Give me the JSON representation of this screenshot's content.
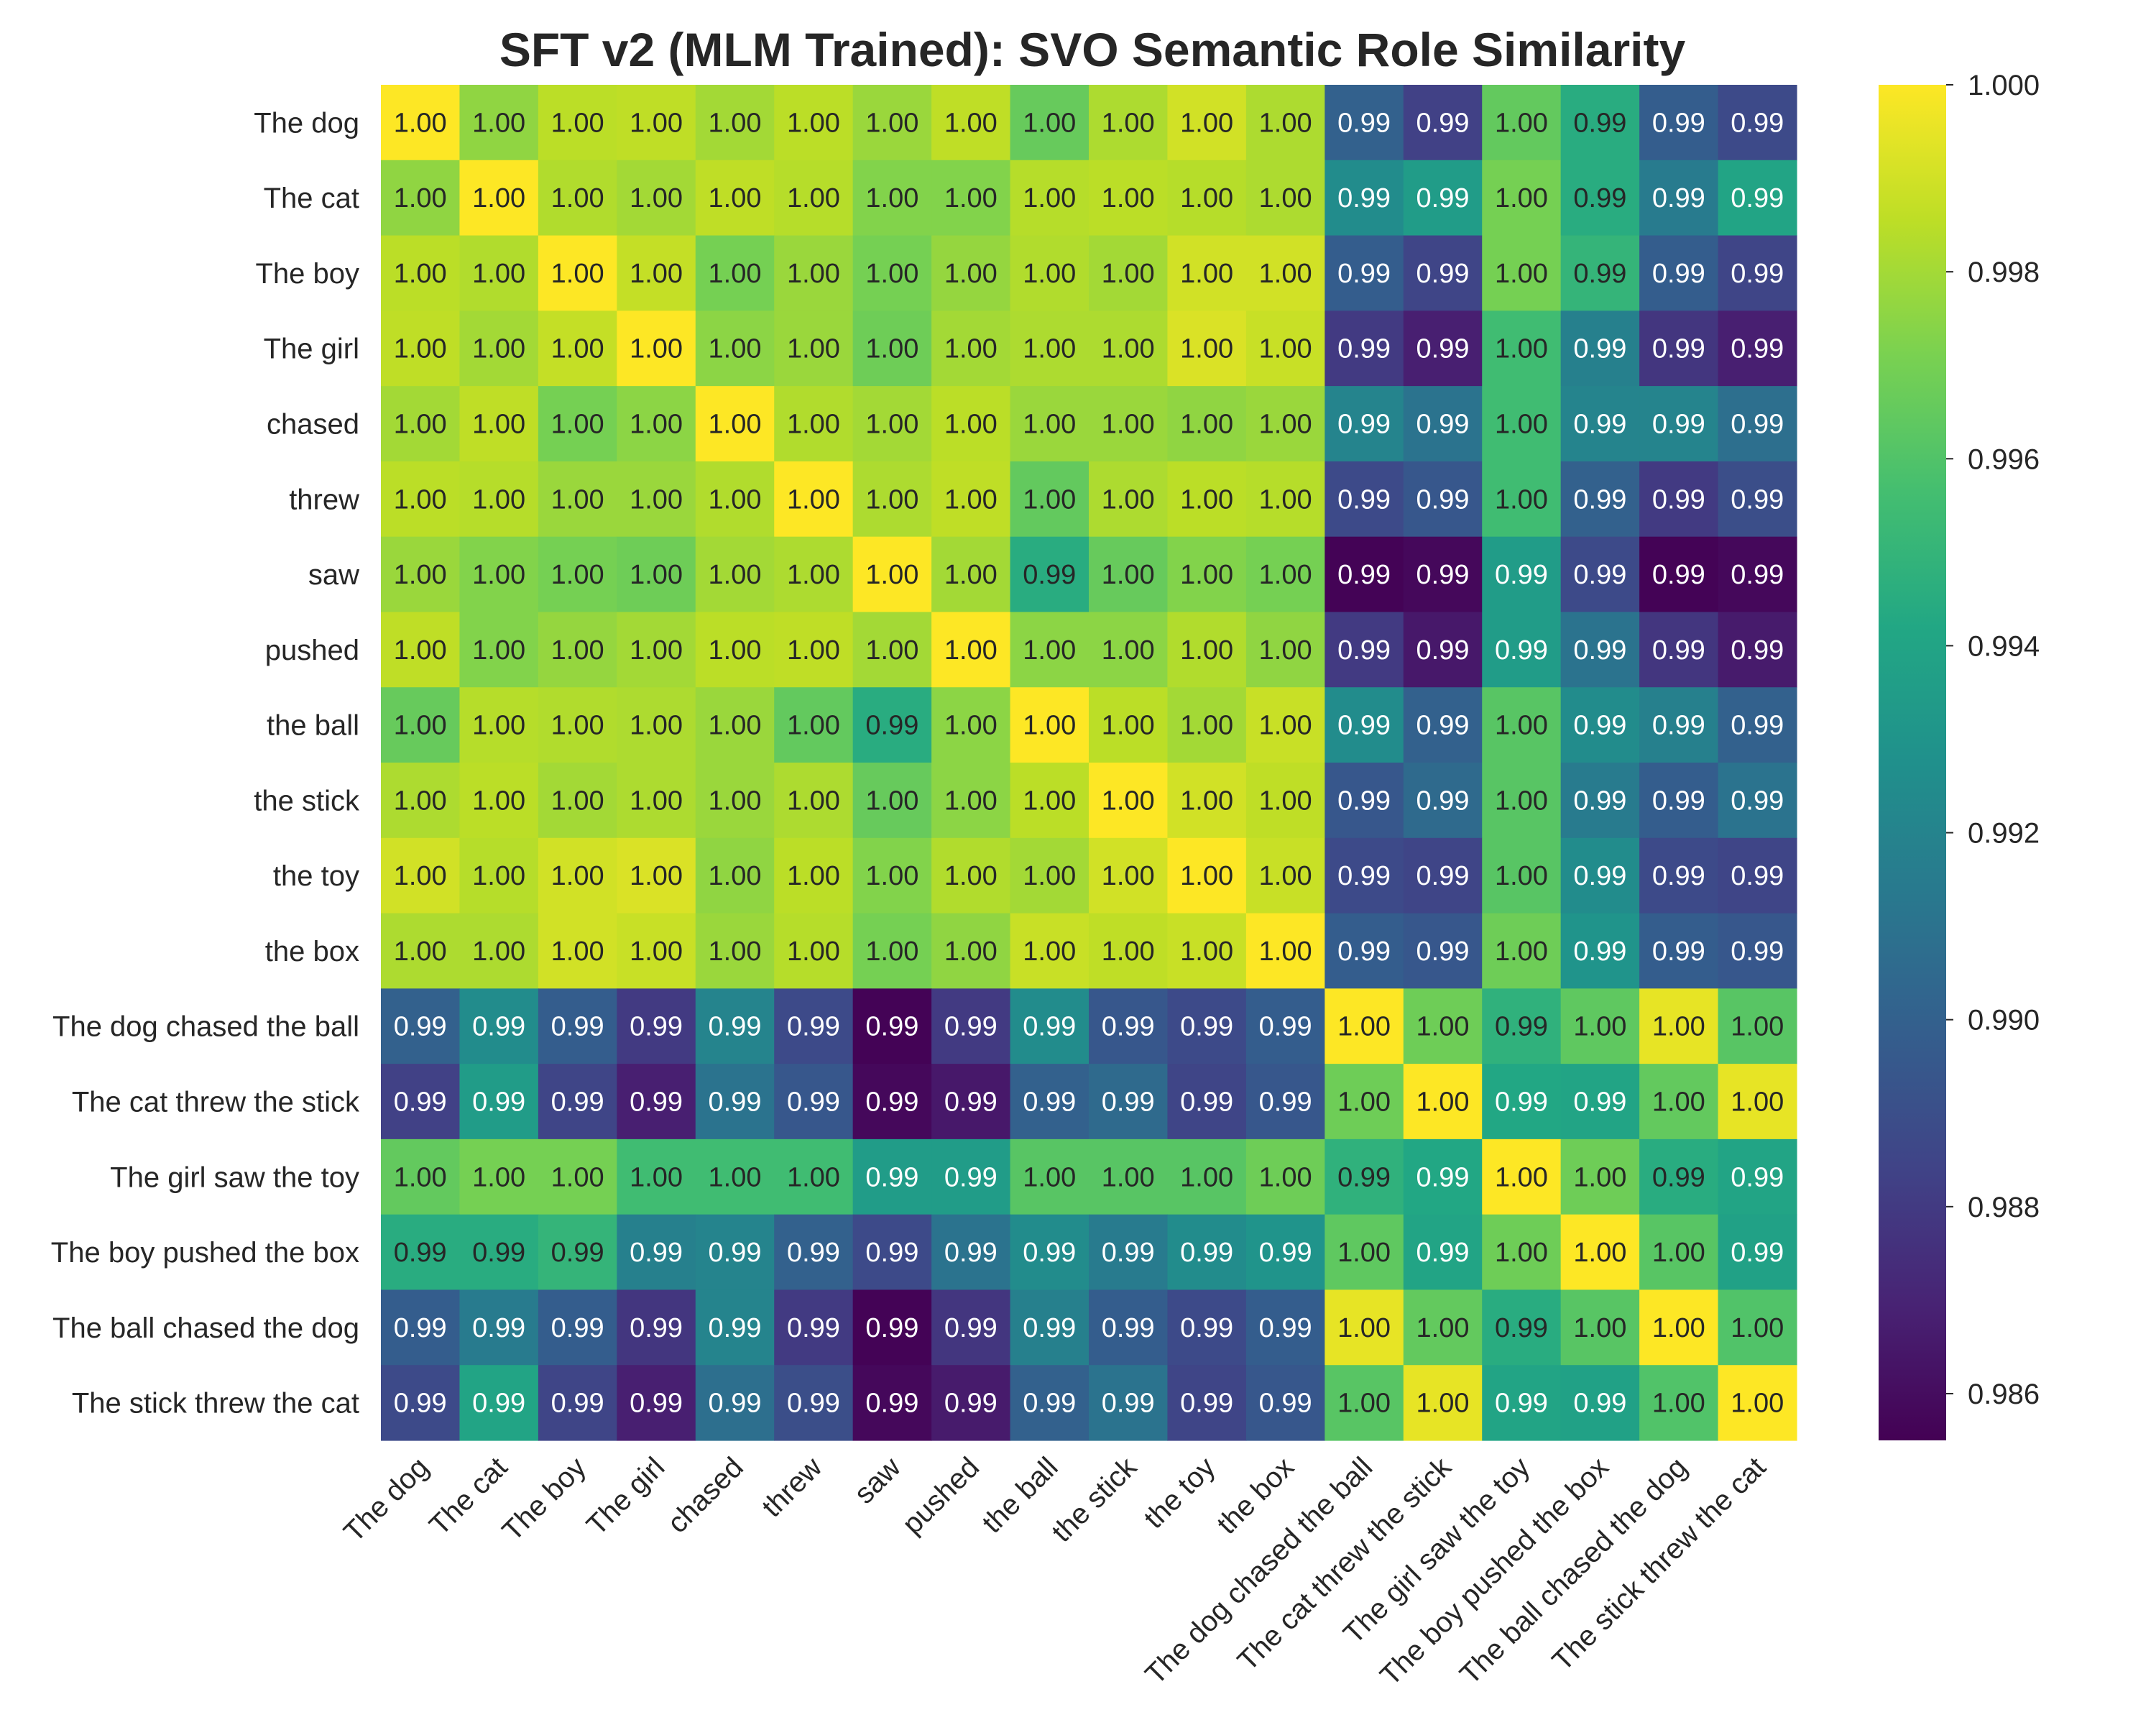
{
  "chart_data": {
    "type": "heatmap",
    "title": "SFT v2 (MLM Trained): SVO Semantic Role Similarity",
    "row_labels": [
      "The dog",
      "The cat",
      "The boy",
      "The girl",
      "chased",
      "threw",
      "saw",
      "pushed",
      "the ball",
      "the stick",
      "the toy",
      "the box",
      "The dog chased the ball",
      "The cat threw the stick",
      "The girl saw the toy",
      "The boy pushed the box",
      "The ball chased the dog",
      "The stick threw the cat"
    ],
    "col_labels": [
      "The dog",
      "The cat",
      "The boy",
      "The girl",
      "chased",
      "threw",
      "saw",
      "pushed",
      "the ball",
      "the stick",
      "the toy",
      "the box",
      "The dog chased the ball",
      "The cat threw the stick",
      "The girl saw the toy",
      "The boy pushed the box",
      "The ball chased the dog",
      "The stick threw the cat"
    ],
    "values": [
      [
        1.0,
        0.9976,
        0.9985,
        0.9986,
        0.998,
        0.9985,
        0.9978,
        0.9986,
        0.9966,
        0.9982,
        0.999,
        0.9982,
        0.99,
        0.9883,
        0.9965,
        0.9945,
        0.9898,
        0.9888
      ],
      [
        0.9976,
        1.0,
        0.9983,
        0.998,
        0.9986,
        0.9984,
        0.9973,
        0.9973,
        0.9984,
        0.9985,
        0.9984,
        0.9982,
        0.9925,
        0.9935,
        0.997,
        0.9945,
        0.9915,
        0.994
      ],
      [
        0.9985,
        0.9983,
        1.0,
        0.9987,
        0.997,
        0.9978,
        0.997,
        0.9977,
        0.9983,
        0.998,
        0.999,
        0.999,
        0.9898,
        0.9885,
        0.997,
        0.995,
        0.9898,
        0.9885
      ],
      [
        0.9986,
        0.998,
        0.9987,
        1.0,
        0.9975,
        0.9978,
        0.9968,
        0.998,
        0.9982,
        0.9982,
        0.9992,
        0.9988,
        0.988,
        0.9868,
        0.9955,
        0.9918,
        0.9878,
        0.9868
      ],
      [
        0.998,
        0.9986,
        0.997,
        0.9975,
        1.0,
        0.9983,
        0.998,
        0.9985,
        0.9978,
        0.9978,
        0.9976,
        0.9978,
        0.992,
        0.991,
        0.9955,
        0.992,
        0.992,
        0.9908
      ],
      [
        0.9985,
        0.9984,
        0.9978,
        0.9978,
        0.9983,
        1.0,
        0.9982,
        0.9986,
        0.9965,
        0.9982,
        0.9985,
        0.9984,
        0.9888,
        0.9895,
        0.9955,
        0.99,
        0.988,
        0.989
      ],
      [
        0.9978,
        0.9973,
        0.997,
        0.9968,
        0.998,
        0.9982,
        1.0,
        0.998,
        0.9945,
        0.9966,
        0.9973,
        0.997,
        0.9856,
        0.9858,
        0.9935,
        0.9888,
        0.9856,
        0.9858
      ],
      [
        0.9986,
        0.9973,
        0.9977,
        0.998,
        0.9985,
        0.9986,
        0.998,
        1.0,
        0.9975,
        0.9975,
        0.9983,
        0.9976,
        0.988,
        0.9865,
        0.9935,
        0.991,
        0.9878,
        0.9866
      ],
      [
        0.9966,
        0.9984,
        0.9983,
        0.9982,
        0.9978,
        0.9965,
        0.9945,
        0.9975,
        1.0,
        0.9985,
        0.998,
        0.9988,
        0.9925,
        0.99,
        0.9962,
        0.9925,
        0.9918,
        0.99
      ],
      [
        0.9982,
        0.9985,
        0.998,
        0.9982,
        0.9978,
        0.9982,
        0.9966,
        0.9975,
        0.9985,
        1.0,
        0.999,
        0.9986,
        0.9895,
        0.9905,
        0.9962,
        0.9915,
        0.9898,
        0.991
      ],
      [
        0.999,
        0.9984,
        0.999,
        0.9992,
        0.9976,
        0.9985,
        0.9973,
        0.9983,
        0.998,
        0.999,
        1.0,
        0.9988,
        0.9888,
        0.9885,
        0.9962,
        0.9925,
        0.9888,
        0.9885
      ],
      [
        0.9982,
        0.9982,
        0.999,
        0.9988,
        0.9978,
        0.9984,
        0.997,
        0.9976,
        0.9988,
        0.9986,
        0.9988,
        1.0,
        0.9898,
        0.9895,
        0.9968,
        0.993,
        0.9898,
        0.9895
      ],
      [
        0.99,
        0.9925,
        0.9898,
        0.988,
        0.992,
        0.9888,
        0.9856,
        0.988,
        0.9925,
        0.9895,
        0.9888,
        0.9898,
        1.0,
        0.9968,
        0.9948,
        0.9964,
        0.9995,
        0.9962
      ],
      [
        0.9883,
        0.9935,
        0.9885,
        0.9868,
        0.991,
        0.9895,
        0.9858,
        0.9865,
        0.99,
        0.9905,
        0.9885,
        0.9895,
        0.9968,
        1.0,
        0.9942,
        0.994,
        0.9965,
        0.9995
      ],
      [
        0.9965,
        0.997,
        0.997,
        0.9955,
        0.9955,
        0.9955,
        0.9935,
        0.9935,
        0.9962,
        0.9962,
        0.9962,
        0.9968,
        0.9948,
        0.9942,
        1.0,
        0.9968,
        0.9945,
        0.994
      ],
      [
        0.9945,
        0.9945,
        0.995,
        0.9918,
        0.992,
        0.99,
        0.9888,
        0.991,
        0.9925,
        0.9915,
        0.9925,
        0.993,
        0.9964,
        0.994,
        0.9968,
        1.0,
        0.9962,
        0.9938
      ],
      [
        0.9898,
        0.9915,
        0.9898,
        0.9878,
        0.992,
        0.988,
        0.9856,
        0.9878,
        0.9918,
        0.9898,
        0.9888,
        0.9898,
        0.9995,
        0.9965,
        0.9945,
        0.9962,
        1.0,
        0.996
      ],
      [
        0.9888,
        0.994,
        0.9885,
        0.9868,
        0.9908,
        0.989,
        0.9858,
        0.9866,
        0.99,
        0.991,
        0.9885,
        0.9895,
        0.9962,
        0.9995,
        0.994,
        0.9938,
        0.996,
        1.0
      ]
    ],
    "value_format": "2 decimals",
    "colorscale": "viridis",
    "colorbar": {
      "min": 0.9855,
      "max": 1.0,
      "ticks": [
        "0.986",
        "0.988",
        "0.990",
        "0.992",
        "0.994",
        "0.996",
        "0.998",
        "1.000"
      ]
    },
    "xlabel": "",
    "ylabel": "",
    "grid": false,
    "legend": "colorbar-right"
  }
}
